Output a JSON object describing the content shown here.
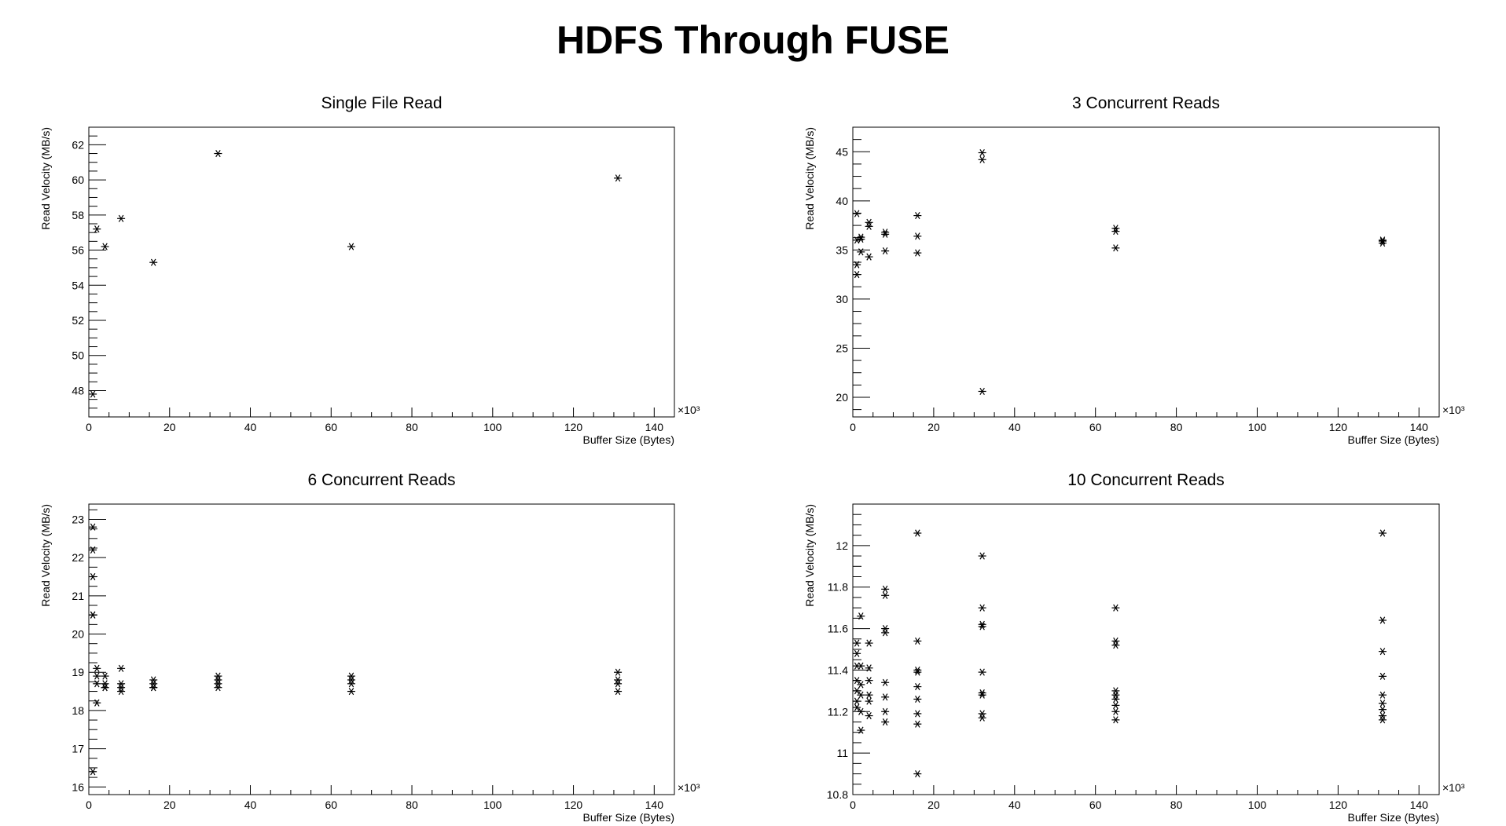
{
  "page": {
    "title": "HDFS Through FUSE"
  },
  "chart_data": [
    {
      "type": "scatter",
      "title": "Single File Read",
      "xlabel": "Buffer Size (Bytes)",
      "ylabel": "Read Velocity (MB/s)",
      "x_multiplier_label": "×10³",
      "xlim": [
        0,
        145
      ],
      "ylim": [
        46.5,
        63
      ],
      "x_ticks": [
        0,
        20,
        40,
        60,
        80,
        100,
        120,
        140
      ],
      "y_ticks": [
        48,
        50,
        52,
        54,
        56,
        58,
        60,
        62
      ],
      "x_tick_labels": [
        "0",
        "20",
        "40",
        "60",
        "80",
        "100",
        "120",
        "140"
      ],
      "y_tick_labels": [
        "48",
        "50",
        "52",
        "54",
        "56",
        "58",
        "60",
        "62"
      ],
      "marker": "asterisk",
      "grid": false,
      "points": [
        {
          "x": 1,
          "y": 47.8
        },
        {
          "x": 2,
          "y": 57.2
        },
        {
          "x": 4,
          "y": 56.2
        },
        {
          "x": 8,
          "y": 57.8
        },
        {
          "x": 16,
          "y": 55.3
        },
        {
          "x": 32,
          "y": 61.5
        },
        {
          "x": 65,
          "y": 56.2
        },
        {
          "x": 131,
          "y": 60.1
        }
      ]
    },
    {
      "type": "scatter",
      "title": "3 Concurrent Reads",
      "xlabel": "Buffer Size (Bytes)",
      "ylabel": "Read Velocity (MB/s)",
      "x_multiplier_label": "×10³",
      "xlim": [
        0,
        145
      ],
      "ylim": [
        18,
        47.5
      ],
      "x_ticks": [
        0,
        20,
        40,
        60,
        80,
        100,
        120,
        140
      ],
      "y_ticks": [
        20,
        25,
        30,
        35,
        40,
        45
      ],
      "x_tick_labels": [
        "0",
        "20",
        "40",
        "60",
        "80",
        "100",
        "120",
        "140"
      ],
      "y_tick_labels": [
        "20",
        "25",
        "30",
        "35",
        "40",
        "45"
      ],
      "marker": "asterisk",
      "grid": false,
      "points": [
        {
          "x": 1,
          "y": 38.7
        },
        {
          "x": 1,
          "y": 33.5
        },
        {
          "x": 1,
          "y": 32.5
        },
        {
          "x": 1,
          "y": 36.0
        },
        {
          "x": 2,
          "y": 36.3
        },
        {
          "x": 2,
          "y": 36.1
        },
        {
          "x": 2,
          "y": 34.8
        },
        {
          "x": 4,
          "y": 37.8
        },
        {
          "x": 4,
          "y": 37.4
        },
        {
          "x": 4,
          "y": 34.3
        },
        {
          "x": 8,
          "y": 36.8
        },
        {
          "x": 8,
          "y": 36.6
        },
        {
          "x": 8,
          "y": 34.9
        },
        {
          "x": 16,
          "y": 38.5
        },
        {
          "x": 16,
          "y": 36.4
        },
        {
          "x": 16,
          "y": 34.7
        },
        {
          "x": 32,
          "y": 44.9
        },
        {
          "x": 32,
          "y": 44.2
        },
        {
          "x": 32,
          "y": 20.6
        },
        {
          "x": 65,
          "y": 37.2
        },
        {
          "x": 65,
          "y": 36.9
        },
        {
          "x": 65,
          "y": 35.2
        },
        {
          "x": 131,
          "y": 36.0
        },
        {
          "x": 131,
          "y": 35.9
        },
        {
          "x": 131,
          "y": 35.7
        }
      ]
    },
    {
      "type": "scatter",
      "title": "6 Concurrent Reads",
      "xlabel": "Buffer Size (Bytes)",
      "ylabel": "Read Velocity (MB/s)",
      "x_multiplier_label": "×10³",
      "xlim": [
        0,
        145
      ],
      "ylim": [
        15.8,
        23.4
      ],
      "x_ticks": [
        0,
        20,
        40,
        60,
        80,
        100,
        120,
        140
      ],
      "y_ticks": [
        16,
        17,
        18,
        19,
        20,
        21,
        22,
        23
      ],
      "x_tick_labels": [
        "0",
        "20",
        "40",
        "60",
        "80",
        "100",
        "120",
        "140"
      ],
      "y_tick_labels": [
        "16",
        "17",
        "18",
        "19",
        "20",
        "21",
        "22",
        "23"
      ],
      "marker": "asterisk",
      "grid": false,
      "points": [
        {
          "x": 1,
          "y": 22.8
        },
        {
          "x": 1,
          "y": 22.2
        },
        {
          "x": 1,
          "y": 21.5
        },
        {
          "x": 1,
          "y": 20.5
        },
        {
          "x": 1,
          "y": 20.5
        },
        {
          "x": 1,
          "y": 16.4
        },
        {
          "x": 2,
          "y": 19.1
        },
        {
          "x": 2,
          "y": 18.9
        },
        {
          "x": 2,
          "y": 18.7
        },
        {
          "x": 2,
          "y": 18.2
        },
        {
          "x": 4,
          "y": 18.9
        },
        {
          "x": 4,
          "y": 18.7
        },
        {
          "x": 4,
          "y": 18.6
        },
        {
          "x": 4,
          "y": 18.6
        },
        {
          "x": 8,
          "y": 19.1
        },
        {
          "x": 8,
          "y": 18.7
        },
        {
          "x": 8,
          "y": 18.6
        },
        {
          "x": 8,
          "y": 18.5
        },
        {
          "x": 16,
          "y": 18.8
        },
        {
          "x": 16,
          "y": 18.7
        },
        {
          "x": 16,
          "y": 18.6
        },
        {
          "x": 16,
          "y": 18.6
        },
        {
          "x": 32,
          "y": 18.9
        },
        {
          "x": 32,
          "y": 18.8
        },
        {
          "x": 32,
          "y": 18.7
        },
        {
          "x": 32,
          "y": 18.6
        },
        {
          "x": 65,
          "y": 18.9
        },
        {
          "x": 65,
          "y": 18.8
        },
        {
          "x": 65,
          "y": 18.7
        },
        {
          "x": 65,
          "y": 18.5
        },
        {
          "x": 131,
          "y": 19.0
        },
        {
          "x": 131,
          "y": 18.8
        },
        {
          "x": 131,
          "y": 18.7
        },
        {
          "x": 131,
          "y": 18.5
        }
      ]
    },
    {
      "type": "scatter",
      "title": "10 Concurrent Reads",
      "xlabel": "Buffer Size (Bytes)",
      "ylabel": "Read Velocity (MB/s)",
      "x_multiplier_label": "×10³",
      "xlim": [
        0,
        145
      ],
      "ylim": [
        10.8,
        12.2
      ],
      "x_ticks": [
        0,
        20,
        40,
        60,
        80,
        100,
        120,
        140
      ],
      "y_ticks": [
        10.8,
        11,
        11.2,
        11.4,
        11.6,
        11.8,
        12
      ],
      "x_tick_labels": [
        "0",
        "20",
        "40",
        "60",
        "80",
        "100",
        "120",
        "140"
      ],
      "y_tick_labels": [
        "10.8",
        "11",
        "11.2",
        "11.4",
        "11.6",
        "11.8",
        "12"
      ],
      "marker": "asterisk",
      "grid": false,
      "points": [
        {
          "x": 1,
          "y": 11.53
        },
        {
          "x": 1,
          "y": 11.48
        },
        {
          "x": 1,
          "y": 11.42
        },
        {
          "x": 1,
          "y": 11.35
        },
        {
          "x": 1,
          "y": 11.3
        },
        {
          "x": 1,
          "y": 11.25
        },
        {
          "x": 1,
          "y": 11.22
        },
        {
          "x": 2,
          "y": 11.66
        },
        {
          "x": 2,
          "y": 11.42
        },
        {
          "x": 2,
          "y": 11.33
        },
        {
          "x": 2,
          "y": 11.28
        },
        {
          "x": 2,
          "y": 11.2
        },
        {
          "x": 2,
          "y": 11.11
        },
        {
          "x": 4,
          "y": 11.53
        },
        {
          "x": 4,
          "y": 11.41
        },
        {
          "x": 4,
          "y": 11.35
        },
        {
          "x": 4,
          "y": 11.28
        },
        {
          "x": 4,
          "y": 11.25
        },
        {
          "x": 4,
          "y": 11.18
        },
        {
          "x": 8,
          "y": 11.79
        },
        {
          "x": 8,
          "y": 11.76
        },
        {
          "x": 8,
          "y": 11.6
        },
        {
          "x": 8,
          "y": 11.58
        },
        {
          "x": 8,
          "y": 11.34
        },
        {
          "x": 8,
          "y": 11.27
        },
        {
          "x": 8,
          "y": 11.2
        },
        {
          "x": 8,
          "y": 11.15
        },
        {
          "x": 16,
          "y": 12.06
        },
        {
          "x": 16,
          "y": 11.54
        },
        {
          "x": 16,
          "y": 11.4
        },
        {
          "x": 16,
          "y": 11.39
        },
        {
          "x": 16,
          "y": 11.32
        },
        {
          "x": 16,
          "y": 11.26
        },
        {
          "x": 16,
          "y": 11.19
        },
        {
          "x": 16,
          "y": 11.14
        },
        {
          "x": 16,
          "y": 10.9
        },
        {
          "x": 32,
          "y": 11.95
        },
        {
          "x": 32,
          "y": 11.7
        },
        {
          "x": 32,
          "y": 11.62
        },
        {
          "x": 32,
          "y": 11.61
        },
        {
          "x": 32,
          "y": 11.39
        },
        {
          "x": 32,
          "y": 11.29
        },
        {
          "x": 32,
          "y": 11.28
        },
        {
          "x": 32,
          "y": 11.19
        },
        {
          "x": 32,
          "y": 11.17
        },
        {
          "x": 65,
          "y": 11.7
        },
        {
          "x": 65,
          "y": 11.54
        },
        {
          "x": 65,
          "y": 11.52
        },
        {
          "x": 65,
          "y": 11.3
        },
        {
          "x": 65,
          "y": 11.28
        },
        {
          "x": 65,
          "y": 11.26
        },
        {
          "x": 65,
          "y": 11.23
        },
        {
          "x": 65,
          "y": 11.2
        },
        {
          "x": 65,
          "y": 11.16
        },
        {
          "x": 131,
          "y": 12.06
        },
        {
          "x": 131,
          "y": 11.64
        },
        {
          "x": 131,
          "y": 11.49
        },
        {
          "x": 131,
          "y": 11.37
        },
        {
          "x": 131,
          "y": 11.28
        },
        {
          "x": 131,
          "y": 11.24
        },
        {
          "x": 131,
          "y": 11.21
        },
        {
          "x": 131,
          "y": 11.18
        },
        {
          "x": 131,
          "y": 11.16
        }
      ]
    }
  ]
}
